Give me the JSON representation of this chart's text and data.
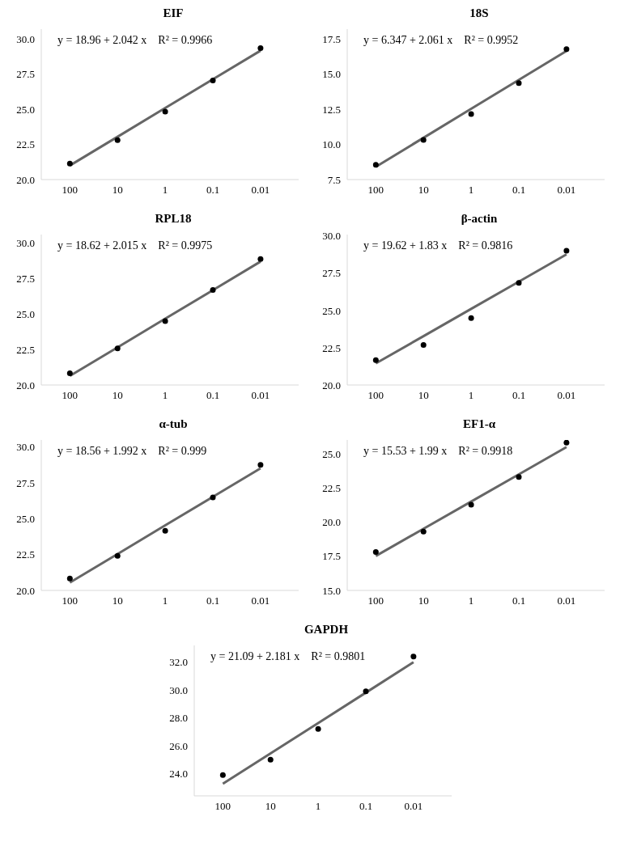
{
  "chart_data": [
    {
      "type": "scatter",
      "title": "EIF",
      "categories": [
        "100",
        "10",
        "1",
        "0.1",
        "0.01"
      ],
      "ylim": [
        20,
        30.7
      ],
      "yticks": [
        {
          "value": 20,
          "label": "20.0"
        },
        22.5,
        {
          "value": 25,
          "label": "25.0"
        },
        27.5,
        {
          "value": 30,
          "label": "30.0"
        }
      ],
      "grid": false,
      "legend": false,
      "annotations": [
        "y = 18.96 + 2.042 x    R² = 0.9966"
      ],
      "series": [
        {
          "color": "#000000",
          "marker": "circle",
          "values": [
            21.13,
            22.8,
            24.83,
            27.05,
            29.35
          ]
        },
        {
          "type": "line",
          "marker": "none",
          "color": "#666666",
          "values": [
            21.0,
            23.04,
            25.09,
            27.13,
            29.17
          ]
        }
      ]
    },
    {
      "type": "scatter",
      "title": "18S",
      "categories": [
        "100",
        "10",
        "1",
        "0.1",
        "0.01"
      ],
      "ylim": [
        7.5,
        18.2
      ],
      "yticks": [
        7.5,
        {
          "value": 10,
          "label": "10.0"
        },
        12.5,
        {
          "value": 15,
          "label": "15.0"
        },
        17.5
      ],
      "grid": false,
      "legend": false,
      "annotations": [
        "y = 6.347 + 2.061 x    R² = 0.9952"
      ],
      "series": [
        {
          "color": "#000000",
          "marker": "circle",
          "values": [
            8.55,
            10.32,
            12.16,
            14.36,
            16.78
          ]
        },
        {
          "type": "line",
          "marker": "none",
          "color": "#666666",
          "values": [
            8.41,
            10.47,
            12.53,
            14.59,
            16.65
          ]
        }
      ]
    },
    {
      "type": "scatter",
      "title": "RPL18",
      "categories": [
        "100",
        "10",
        "1",
        "0.1",
        "0.01"
      ],
      "ylim": [
        20,
        30.6
      ],
      "yticks": [
        {
          "value": 20,
          "label": "20.0"
        },
        22.5,
        {
          "value": 25,
          "label": "25.0"
        },
        27.5,
        {
          "value": 30,
          "label": "30.0"
        }
      ],
      "grid": false,
      "legend": false,
      "annotations": [
        "y = 18.62 + 2.015 x    R² = 0.9975"
      ],
      "series": [
        {
          "color": "#000000",
          "marker": "circle",
          "values": [
            20.83,
            22.58,
            24.5,
            26.7,
            28.88
          ]
        },
        {
          "type": "line",
          "marker": "none",
          "color": "#666666",
          "values": [
            20.64,
            22.65,
            24.67,
            26.68,
            28.7
          ]
        }
      ]
    },
    {
      "type": "scatter",
      "title": "β-actin",
      "categories": [
        "100",
        "10",
        "1",
        "0.1",
        "0.01"
      ],
      "ylim": [
        20,
        30.1
      ],
      "yticks": [
        {
          "value": 20,
          "label": "20.0"
        },
        22.5,
        {
          "value": 25,
          "label": "25.0"
        },
        27.5,
        {
          "value": 30,
          "label": "30.0"
        }
      ],
      "grid": false,
      "legend": false,
      "annotations": [
        "y = 19.62 + 1.83 x    R² = 0.9816"
      ],
      "series": [
        {
          "color": "#000000",
          "marker": "circle",
          "values": [
            21.67,
            22.69,
            24.5,
            26.86,
            29.02
          ]
        },
        {
          "type": "line",
          "marker": "none",
          "color": "#666666",
          "values": [
            21.45,
            23.28,
            25.11,
            26.94,
            28.77
          ]
        }
      ]
    },
    {
      "type": "scatter",
      "title": "α-tub",
      "categories": [
        "100",
        "10",
        "1",
        "0.1",
        "0.01"
      ],
      "ylim": [
        20,
        30.5
      ],
      "yticks": [
        {
          "value": 20,
          "label": "20.0"
        },
        22.5,
        {
          "value": 25,
          "label": "25.0"
        },
        27.5,
        {
          "value": 30,
          "label": "30.0"
        }
      ],
      "grid": false,
      "legend": false,
      "annotations": [
        "y = 18.56 + 1.992 x    R² = 0.999"
      ],
      "series": [
        {
          "color": "#000000",
          "marker": "circle",
          "values": [
            20.83,
            22.42,
            24.17,
            26.49,
            28.76
          ]
        },
        {
          "type": "line",
          "marker": "none",
          "color": "#666666",
          "values": [
            20.55,
            22.54,
            24.54,
            26.53,
            28.52
          ]
        }
      ]
    },
    {
      "type": "scatter",
      "title": "EF1-α",
      "categories": [
        "100",
        "10",
        "1",
        "0.1",
        "0.01"
      ],
      "ylim": [
        15,
        26
      ],
      "yticks": [
        {
          "value": 15,
          "label": "15.0"
        },
        17.5,
        {
          "value": 20,
          "label": "20.0"
        },
        22.5,
        {
          "value": 25,
          "label": "25.0"
        }
      ],
      "grid": false,
      "legend": false,
      "annotations": [
        "y = 15.53 + 1.99 x    R² = 0.9918"
      ],
      "series": [
        {
          "color": "#000000",
          "marker": "circle",
          "values": [
            17.81,
            19.3,
            21.27,
            23.3,
            25.81
          ]
        },
        {
          "type": "line",
          "marker": "none",
          "color": "#666666",
          "values": [
            17.52,
            19.51,
            21.5,
            23.49,
            25.48
          ]
        }
      ]
    },
    {
      "type": "scatter",
      "title": "GAPDH",
      "categories": [
        "100",
        "10",
        "1",
        "0.1",
        "0.01"
      ],
      "ylim": [
        22.4,
        33.2
      ],
      "yticks": [
        {
          "value": 24,
          "label": "24.0"
        },
        {
          "value": 26,
          "label": "26.0"
        },
        {
          "value": 28,
          "label": "28.0"
        },
        {
          "value": 30,
          "label": "30.0"
        },
        {
          "value": 32,
          "label": "32.0"
        }
      ],
      "grid": false,
      "legend": false,
      "annotations": [
        "y = 21.09 + 2.181 x    R² = 0.9801"
      ],
      "series": [
        {
          "color": "#000000",
          "marker": "circle",
          "values": [
            23.9,
            25.0,
            27.2,
            29.9,
            32.4
          ]
        },
        {
          "type": "line",
          "marker": "none",
          "color": "#666666",
          "values": [
            23.27,
            25.45,
            27.63,
            29.81,
            32.0
          ]
        }
      ]
    }
  ]
}
